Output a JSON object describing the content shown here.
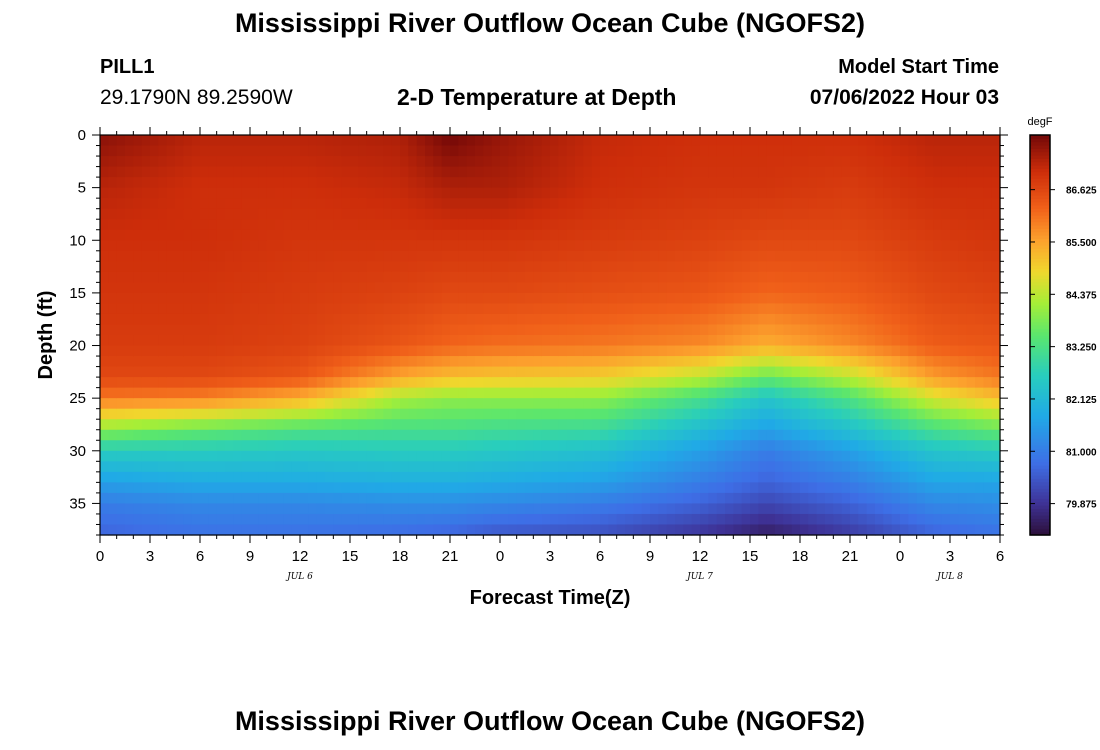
{
  "header": {
    "title": "Mississippi River Outflow Ocean Cube (NGOFS2)",
    "station": "PILL1",
    "coords": "29.1790N  89.2590W",
    "subtitle": "2-D Temperature at Depth",
    "model_start_label": "Model Start Time",
    "model_start_value": "07/06/2022 Hour 03"
  },
  "footer": {
    "title": "Mississippi River Outflow Ocean Cube (NGOFS2)"
  },
  "chart_data": {
    "type": "heatmap",
    "xlabel": "Forecast Time(Z)",
    "ylabel": "Depth (ft)",
    "x_tick_labels": [
      "0",
      "3",
      "6",
      "9",
      "12",
      "15",
      "18",
      "21",
      "0",
      "3",
      "6",
      "9",
      "12",
      "15",
      "18",
      "21",
      "0",
      "3",
      "6"
    ],
    "x_range_hours": [
      0,
      54
    ],
    "date_labels": [
      {
        "text": "JUL 6",
        "hour": 12
      },
      {
        "text": "JUL 7",
        "hour": 36
      },
      {
        "text": "JUL 8",
        "hour": 51
      }
    ],
    "y_ticks": [
      0,
      5,
      10,
      15,
      20,
      25,
      30,
      35
    ],
    "y_range": [
      0,
      38
    ],
    "y_inverted": true,
    "colorbar": {
      "unit": "degF",
      "range": [
        79.2,
        87.8
      ],
      "tick_values": [
        79.875,
        81.0,
        82.125,
        83.25,
        84.375,
        85.5,
        86.625
      ],
      "tick_labels": [
        "79.875",
        "81.000",
        "82.125",
        "83.250",
        "84.375",
        "85.500",
        "86.625"
      ]
    },
    "depth_samples_ft": [
      0,
      5,
      10,
      15,
      20,
      23,
      25,
      28,
      30,
      33,
      35,
      38
    ],
    "series": [
      {
        "hour": 0,
        "values": [
          87.6,
          87.2,
          87.0,
          86.9,
          86.8,
          86.6,
          86.0,
          84.0,
          82.6,
          81.6,
          81.0,
          80.6
        ]
      },
      {
        "hour": 6,
        "values": [
          87.2,
          87.0,
          87.0,
          86.9,
          86.8,
          86.6,
          85.9,
          83.6,
          82.6,
          81.8,
          81.2,
          80.8
        ]
      },
      {
        "hour": 12,
        "values": [
          87.2,
          87.0,
          86.9,
          86.8,
          86.7,
          86.4,
          85.4,
          83.3,
          82.5,
          81.8,
          81.2,
          80.8
        ]
      },
      {
        "hour": 18,
        "values": [
          87.3,
          87.1,
          86.9,
          86.7,
          86.4,
          85.5,
          84.2,
          83.2,
          82.6,
          81.9,
          81.3,
          80.7
        ]
      },
      {
        "hour": 21,
        "values": [
          87.8,
          87.3,
          86.9,
          86.6,
          86.2,
          85.2,
          84.0,
          83.2,
          82.6,
          81.9,
          81.3,
          80.6
        ]
      },
      {
        "hour": 24,
        "values": [
          87.5,
          87.3,
          86.9,
          86.6,
          86.1,
          85.1,
          84.0,
          83.1,
          82.5,
          81.8,
          81.2,
          80.4
        ]
      },
      {
        "hour": 30,
        "values": [
          87.1,
          87.0,
          86.8,
          86.5,
          86.0,
          85.0,
          84.0,
          83.0,
          82.3,
          81.6,
          81.0,
          80.3
        ]
      },
      {
        "hour": 36,
        "values": [
          87.0,
          86.9,
          86.7,
          86.4,
          85.8,
          84.4,
          83.2,
          82.2,
          81.6,
          81.0,
          80.6,
          79.9
        ]
      },
      {
        "hour": 40,
        "values": [
          87.0,
          86.9,
          86.6,
          86.2,
          85.4,
          83.6,
          82.4,
          81.6,
          81.0,
          80.6,
          80.2,
          79.5
        ]
      },
      {
        "hour": 45,
        "values": [
          87.0,
          86.8,
          86.6,
          86.3,
          85.8,
          84.4,
          83.3,
          82.3,
          81.6,
          81.0,
          80.6,
          80.0
        ]
      },
      {
        "hour": 50,
        "values": [
          87.2,
          87.0,
          86.8,
          86.6,
          86.3,
          85.6,
          84.6,
          83.2,
          82.4,
          81.7,
          81.2,
          80.6
        ]
      },
      {
        "hour": 54,
        "values": [
          87.2,
          87.0,
          86.9,
          86.7,
          86.4,
          86.0,
          85.2,
          83.6,
          82.6,
          81.7,
          81.3,
          80.8
        ]
      }
    ]
  }
}
